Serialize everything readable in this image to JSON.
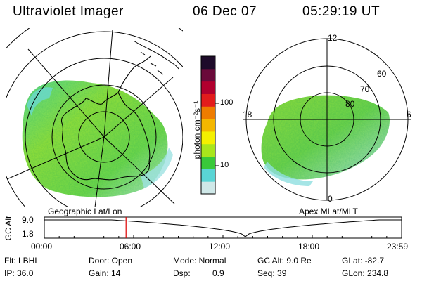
{
  "header": {
    "title": "Ultraviolet Imager",
    "date": "06 Dec 07",
    "time": "05:29:19 UT"
  },
  "left_panel": {
    "caption": "Geographic Lat/Lon"
  },
  "right_panel": {
    "caption": "Apex MLat/MLT",
    "mlt_labels": {
      "top": "12",
      "left": "18",
      "right": "6",
      "bottom": "0"
    },
    "lat_labels": [
      "60",
      "70",
      "80"
    ]
  },
  "colorbar": {
    "unit_label": "photon cm⁻²s⁻¹",
    "ticks": [
      "100",
      "10"
    ],
    "colors": [
      "#cfe8e8",
      "#5ad5d5",
      "#39c93a",
      "#a9e61c",
      "#f4f000",
      "#f4b700",
      "#ee7c00",
      "#e21c1c",
      "#b1002e",
      "#6a0a3a",
      "#1e0b2a"
    ]
  },
  "altitude_plot": {
    "ylabel": "GC Alt",
    "yticks": [
      "9.0",
      "1.8"
    ],
    "xticks": [
      "00:00",
      "06:00",
      "12:00",
      "18:00",
      "23:59"
    ],
    "current_time_hours": 5.49,
    "min_time_hours": 13.5
  },
  "footer": {
    "filter": "Flt: LBHL",
    "ip": "IP: 36.0",
    "door": "Door: Open",
    "gain": "Gain: 14",
    "mode": "Mode: Normal",
    "dsp_label": "Dsp:",
    "dsp_value": "0.9",
    "gc_alt": "GC Alt: 9.0 Re",
    "seq": "Seq: 39",
    "glat": "GLat: -82.7",
    "glon": "GLon: 234.8"
  }
}
